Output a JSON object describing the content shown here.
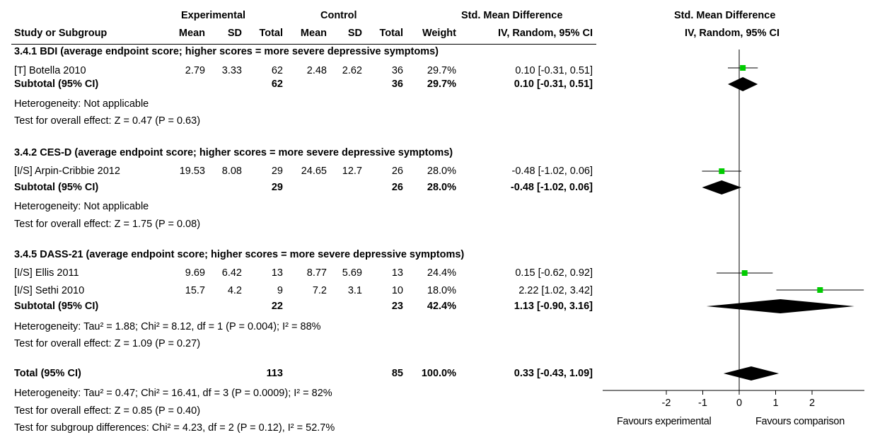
{
  "header": {
    "group_experimental": "Experimental",
    "group_control": "Control",
    "std_mean_diff": "Std. Mean Difference",
    "study_col": "Study or Subgroup",
    "mean": "Mean",
    "sd": "SD",
    "total": "Total",
    "weight": "Weight",
    "method": "IV, Random, 95% CI",
    "plot_title": "Std. Mean Difference",
    "plot_method": "IV, Random, 95% CI"
  },
  "subgroups": [
    {
      "title": "3.4.1 BDI (average endpoint score; higher scores = more severe depressive symptoms)",
      "studies": [
        {
          "name": "[T] Botella 2010",
          "e_mean": "2.79",
          "e_sd": "3.33",
          "e_total": "62",
          "c_mean": "2.48",
          "c_sd": "2.62",
          "c_total": "36",
          "weight": "29.7%",
          "ci": "0.10 [-0.31, 0.51]"
        }
      ],
      "subtotal": {
        "label": "Subtotal (95% CI)",
        "e_total": "62",
        "c_total": "36",
        "weight": "29.7%",
        "ci": "0.10 [-0.31, 0.51]"
      },
      "heterogeneity": "Heterogeneity: Not applicable",
      "overall": "Test for overall effect: Z = 0.47 (P = 0.63)"
    },
    {
      "title": "3.4.2 CES-D (average endpoint score; higher scores = more severe depressive symptoms)",
      "studies": [
        {
          "name": "[I/S] Arpin-Cribbie 2012",
          "e_mean": "19.53",
          "e_sd": "8.08",
          "e_total": "29",
          "c_mean": "24.65",
          "c_sd": "12.7",
          "c_total": "26",
          "weight": "28.0%",
          "ci": "-0.48 [-1.02, 0.06]"
        }
      ],
      "subtotal": {
        "label": "Subtotal (95% CI)",
        "e_total": "29",
        "c_total": "26",
        "weight": "28.0%",
        "ci": "-0.48 [-1.02, 0.06]"
      },
      "heterogeneity": "Heterogeneity: Not applicable",
      "overall": "Test for overall effect: Z = 1.75 (P = 0.08)"
    },
    {
      "title": "3.4.5 DASS-21 (average endpoint score; higher scores = more severe depressive symptoms)",
      "studies": [
        {
          "name": "[I/S] Ellis 2011",
          "e_mean": "9.69",
          "e_sd": "6.42",
          "e_total": "13",
          "c_mean": "8.77",
          "c_sd": "5.69",
          "c_total": "13",
          "weight": "24.4%",
          "ci": "0.15 [-0.62, 0.92]"
        },
        {
          "name": "[I/S] Sethi 2010",
          "e_mean": "15.7",
          "e_sd": "4.2",
          "e_total": "9",
          "c_mean": "7.2",
          "c_sd": "3.1",
          "c_total": "10",
          "weight": "18.0%",
          "ci": "2.22 [1.02, 3.42]"
        }
      ],
      "subtotal": {
        "label": "Subtotal (95% CI)",
        "e_total": "22",
        "c_total": "23",
        "weight": "42.4%",
        "ci": "1.13 [-0.90, 3.16]"
      },
      "heterogeneity": "Heterogeneity: Tau² = 1.88; Chi² = 8.12, df = 1 (P = 0.004); I² = 88%",
      "overall": "Test for overall effect: Z = 1.09 (P = 0.27)"
    }
  ],
  "total": {
    "label": "Total (95% CI)",
    "e_total": "113",
    "c_total": "85",
    "weight": "100.0%",
    "ci": "0.33 [-0.43, 1.09]",
    "heterogeneity": "Heterogeneity: Tau² = 0.47; Chi² = 16.41, df = 3 (P = 0.0009); I² = 82%",
    "overall": "Test for overall effect: Z = 0.85 (P = 0.40)",
    "subgroup_diff": "Test for subgroup differences: Chi² = 4.23, df = 2 (P = 0.12), I² = 52.7%"
  },
  "axis": {
    "favours_left": "Favours experimental",
    "favours_right": "Favours comparison"
  },
  "colors": {
    "marker": "#00cc00",
    "line": "#000000"
  },
  "chart_data": {
    "type": "forest",
    "title": "Std. Mean Difference",
    "xlabel": "",
    "xlim": [
      -4,
      3.4
    ],
    "x_ticks": [
      "-2",
      "-1",
      "0",
      "1",
      "2"
    ],
    "null_line": 0,
    "studies": [
      {
        "name": "[T] Botella 2010",
        "estimate": 0.1,
        "lower": -0.31,
        "upper": 0.51
      },
      {
        "name": "[I/S] Arpin-Cribbie 2012",
        "estimate": -0.48,
        "lower": -1.02,
        "upper": 0.06
      },
      {
        "name": "[I/S] Ellis 2011",
        "estimate": 0.15,
        "lower": -0.62,
        "upper": 0.92
      },
      {
        "name": "[I/S] Sethi 2010",
        "estimate": 2.22,
        "lower": 1.02,
        "upper": 3.42
      }
    ],
    "diamonds": [
      {
        "name": "Subtotal 3.4.1",
        "estimate": 0.1,
        "lower": -0.31,
        "upper": 0.51
      },
      {
        "name": "Subtotal 3.4.2",
        "estimate": -0.48,
        "lower": -1.02,
        "upper": 0.06
      },
      {
        "name": "Subtotal 3.4.5",
        "estimate": 1.13,
        "lower": -0.9,
        "upper": 3.16
      },
      {
        "name": "Total (95% CI)",
        "estimate": 0.33,
        "lower": -0.43,
        "upper": 1.09
      }
    ]
  }
}
